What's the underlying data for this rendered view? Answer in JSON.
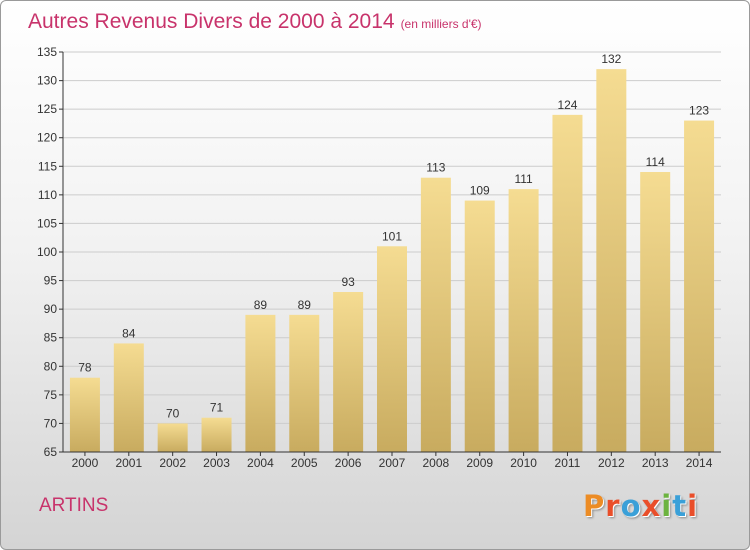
{
  "header": {
    "title": "Autres Revenus Divers de 2000 à 2014",
    "unit": "(en milliers d'€)"
  },
  "footer": {
    "location": "ARTINS",
    "logo_text": "Proxiti"
  },
  "colors": {
    "title": "#c8336b",
    "bar_light": "#f5dc92",
    "bar_dark": "#c8ab5f",
    "axis": "#333333",
    "grid": "#cccccc"
  },
  "chart_data": {
    "type": "bar",
    "categories": [
      "2000",
      "2001",
      "2002",
      "2003",
      "2004",
      "2005",
      "2006",
      "2007",
      "2008",
      "2009",
      "2010",
      "2011",
      "2012",
      "2013",
      "2014"
    ],
    "values": [
      78,
      84,
      70,
      71,
      89,
      89,
      93,
      101,
      113,
      109,
      111,
      124,
      132,
      114,
      123
    ],
    "title": "Autres Revenus Divers de 2000 à 2014",
    "subtitle": "(en milliers d'€)",
    "ylim": [
      65,
      135
    ],
    "yticks": [
      65,
      70,
      75,
      80,
      85,
      90,
      95,
      100,
      105,
      110,
      115,
      120,
      125,
      130,
      135
    ],
    "grid": "horizontal",
    "data_labels": true
  }
}
